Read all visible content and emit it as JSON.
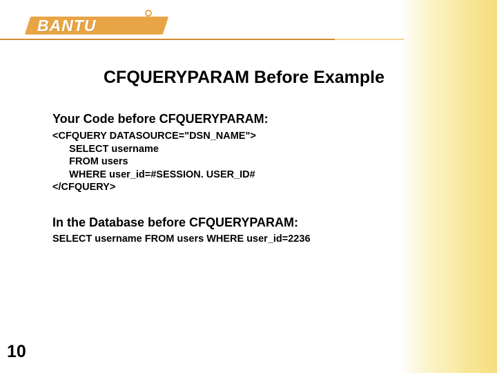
{
  "logo": {
    "text": "BANTU",
    "bar_color": "#e9a545",
    "text_color": "#ffffff",
    "ring_color": "#e9a545"
  },
  "underline": {
    "left_color": "#d28a2e",
    "right_color": "#f3d38e"
  },
  "gradient": {
    "colors": [
      "#ffffff",
      "#fdf8e0",
      "#fcf3c8",
      "#faedaf",
      "#f8e698",
      "#f5dd7f"
    ]
  },
  "title": "CFQUERYPARAM Before Example",
  "section1": {
    "heading": "Your Code before CFQUERYPARAM:",
    "code": "<CFQUERY DATASOURCE=\"DSN_NAME\">\n      SELECT username\n      FROM users\n      WHERE user_id=#SESSION. USER_ID#\n</CFQUERY>"
  },
  "section2": {
    "heading": "In the Database before CFQUERYPARAM:",
    "code": "SELECT username FROM users WHERE user_id=2236"
  },
  "page_number": "10",
  "typography": {
    "title_fontsize": 25,
    "heading_fontsize": 18,
    "code_fontsize": 14.5,
    "pagenum_fontsize": 25,
    "font_family": "Arial",
    "text_color": "#000000"
  }
}
